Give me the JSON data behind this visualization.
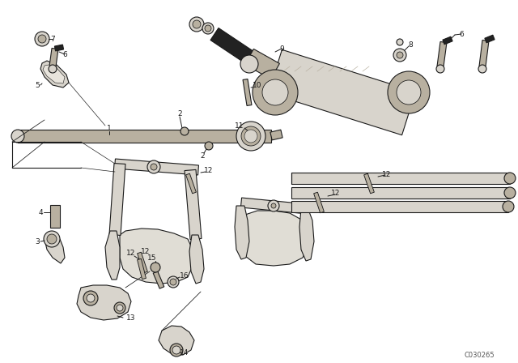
{
  "bg_color": "#ffffff",
  "line_color": "#1a1a1a",
  "fill_light": "#d8d4cc",
  "fill_mid": "#b8b0a0",
  "fill_dark": "#222222",
  "watermark": "C030265",
  "lw": 0.8
}
